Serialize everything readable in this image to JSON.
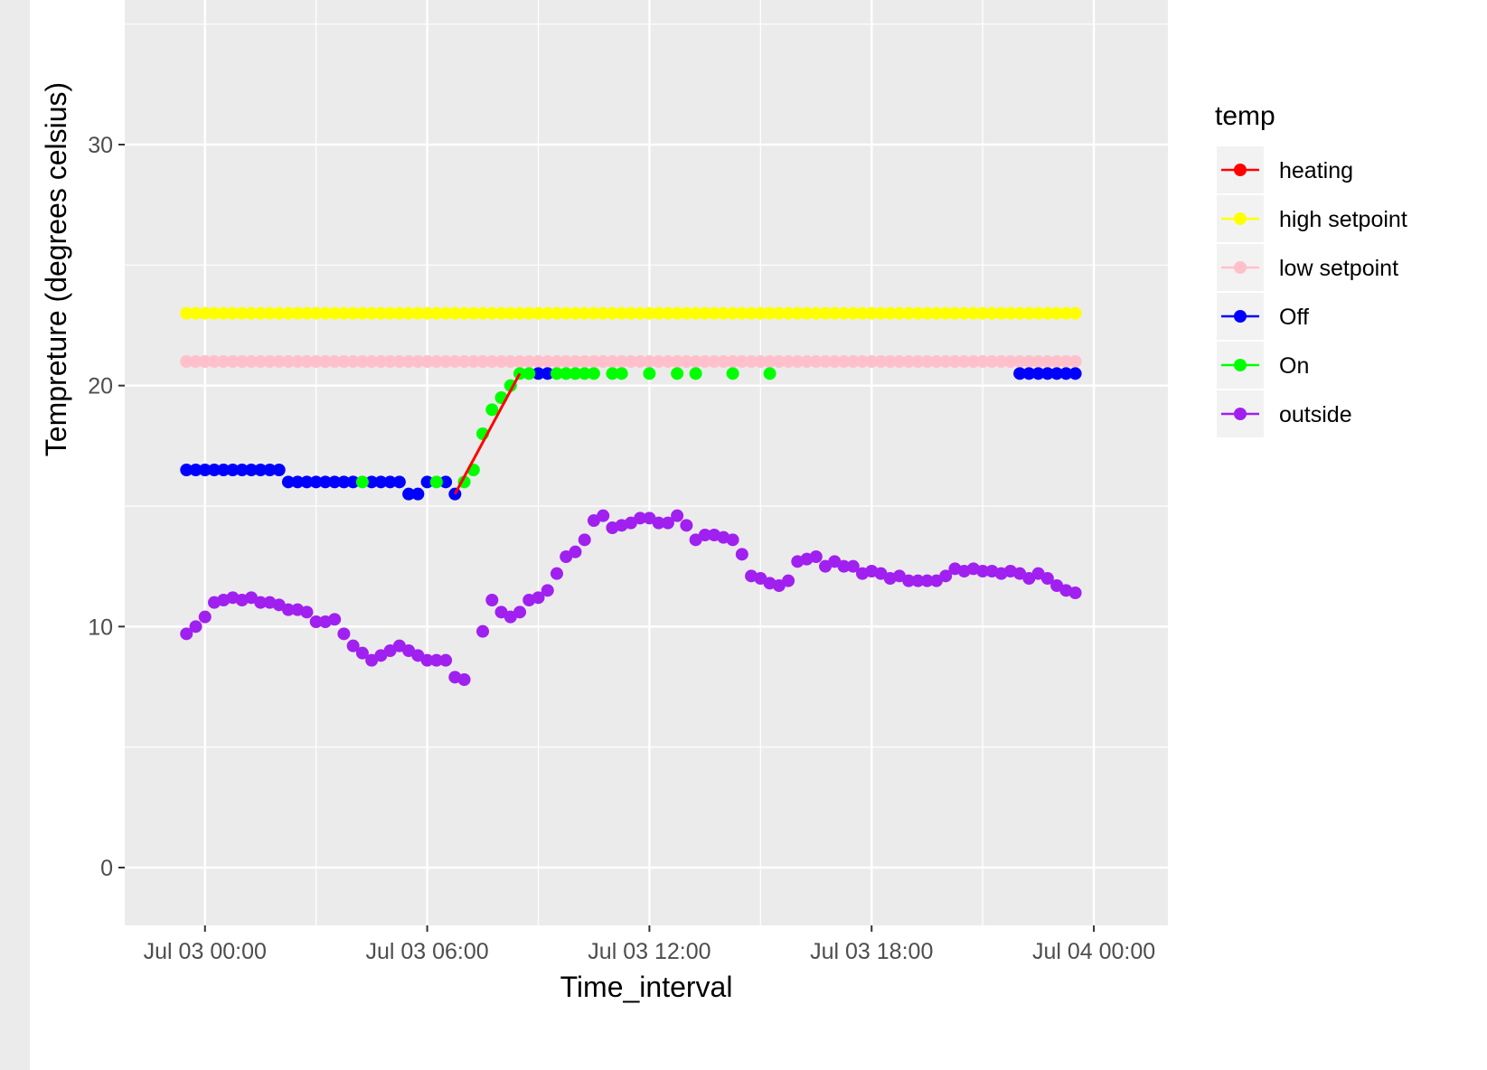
{
  "chart_data": {
    "type": "scatter",
    "xlabel": "Time_interval",
    "ylabel": "Tempreture (degrees celsius)",
    "xlim": [
      "2023-07-02 21:50",
      "2023-07-04 02:00"
    ],
    "ylim": [
      -2.4,
      36
    ],
    "x_ticks": [
      {
        "value": "2023-07-03 00:00",
        "label": "Jul 03 00:00"
      },
      {
        "value": "2023-07-03 06:00",
        "label": "Jul 03 06:00"
      },
      {
        "value": "2023-07-03 12:00",
        "label": "Jul 03 12:00"
      },
      {
        "value": "2023-07-03 18:00",
        "label": "Jul 03 18:00"
      },
      {
        "value": "2023-07-04 00:00",
        "label": "Jul 04 00:00"
      }
    ],
    "y_ticks": [
      0,
      10,
      20,
      30
    ],
    "grid": true,
    "legend": {
      "title": "temp",
      "position": "right"
    },
    "series": [
      {
        "name": "heating",
        "color": "#ff0000",
        "mode": "line",
        "x": [
          "2023-07-03 06:45",
          "2023-07-03 08:30"
        ],
        "y": [
          15.5,
          20.5
        ]
      },
      {
        "name": "high setpoint",
        "color": "#ffff00",
        "mode": "points",
        "x_start": "2023-07-02 23:30",
        "x_end": "2023-07-03 23:30",
        "x_step_minutes": 15,
        "y_constant": 23
      },
      {
        "name": "low setpoint",
        "color": "#ffc0cb",
        "mode": "points",
        "x_start": "2023-07-02 23:30",
        "x_end": "2023-07-03 23:30",
        "x_step_minutes": 15,
        "y_constant": 21
      },
      {
        "name": "Off",
        "color": "#0000ff",
        "mode": "points",
        "x": [
          "2023-07-02 23:30",
          "2023-07-02 23:45",
          "2023-07-03 00:00",
          "2023-07-03 00:15",
          "2023-07-03 00:30",
          "2023-07-03 00:45",
          "2023-07-03 01:00",
          "2023-07-03 01:15",
          "2023-07-03 01:30",
          "2023-07-03 01:45",
          "2023-07-03 02:00",
          "2023-07-03 02:15",
          "2023-07-03 02:30",
          "2023-07-03 02:45",
          "2023-07-03 03:00",
          "2023-07-03 03:15",
          "2023-07-03 03:30",
          "2023-07-03 03:45",
          "2023-07-03 04:00",
          "2023-07-03 04:30",
          "2023-07-03 04:45",
          "2023-07-03 05:00",
          "2023-07-03 05:15",
          "2023-07-03 05:30",
          "2023-07-03 05:45",
          "2023-07-03 06:00",
          "2023-07-03 06:30",
          "2023-07-03 06:45",
          "2023-07-03 09:00",
          "2023-07-03 09:15",
          "2023-07-03 22:00",
          "2023-07-03 22:15",
          "2023-07-03 22:30",
          "2023-07-03 22:45",
          "2023-07-03 23:00",
          "2023-07-03 23:15",
          "2023-07-03 23:30"
        ],
        "y": [
          16.5,
          16.5,
          16.5,
          16.5,
          16.5,
          16.5,
          16.5,
          16.5,
          16.5,
          16.5,
          16.5,
          16,
          16,
          16,
          16,
          16,
          16,
          16,
          16,
          16,
          16,
          16,
          16,
          15.5,
          15.5,
          16,
          16,
          15.5,
          20.5,
          20.5,
          20.5,
          20.5,
          20.5,
          20.5,
          20.5,
          20.5,
          20.5
        ]
      },
      {
        "name": "On",
        "color": "#00ff00",
        "mode": "points",
        "x": [
          "2023-07-03 04:15",
          "2023-07-03 06:15",
          "2023-07-03 07:00",
          "2023-07-03 07:15",
          "2023-07-03 07:30",
          "2023-07-03 07:45",
          "2023-07-03 08:00",
          "2023-07-03 08:15",
          "2023-07-03 08:30",
          "2023-07-03 08:45",
          "2023-07-03 09:30",
          "2023-07-03 09:45",
          "2023-07-03 10:00",
          "2023-07-03 10:15",
          "2023-07-03 10:30",
          "2023-07-03 11:00",
          "2023-07-03 11:15",
          "2023-07-03 12:00",
          "2023-07-03 12:45",
          "2023-07-03 13:15",
          "2023-07-03 14:15",
          "2023-07-03 15:15"
        ],
        "y": [
          16,
          16,
          16,
          16.5,
          18,
          19,
          19.5,
          20,
          20.5,
          20.5,
          20.5,
          20.5,
          20.5,
          20.5,
          20.5,
          20.5,
          20.5,
          20.5,
          20.5,
          20.5,
          20.5,
          20.5
        ]
      },
      {
        "name": "outside",
        "color": "#a020f0",
        "mode": "points",
        "x_start": "2023-07-02 23:30",
        "x_step_minutes": 15,
        "y": [
          9.7,
          10.0,
          10.4,
          11.0,
          11.1,
          11.2,
          11.1,
          11.2,
          11.0,
          11.0,
          10.9,
          10.7,
          10.7,
          10.6,
          10.2,
          10.2,
          10.3,
          9.7,
          9.2,
          8.9,
          8.6,
          8.8,
          9.0,
          9.2,
          9.0,
          8.8,
          8.6,
          8.6,
          8.6,
          7.9,
          7.8,
          null,
          9.8,
          11.1,
          10.6,
          10.4,
          10.6,
          11.1,
          11.2,
          11.5,
          12.2,
          12.9,
          13.1,
          13.6,
          14.4,
          14.6,
          14.1,
          14.2,
          14.3,
          14.5,
          14.5,
          14.3,
          14.3,
          14.6,
          14.2,
          13.6,
          13.8,
          13.8,
          13.7,
          13.6,
          13.0,
          12.1,
          12.0,
          11.8,
          11.7,
          11.9,
          12.7,
          12.8,
          12.9,
          12.5,
          12.7,
          12.5,
          12.5,
          12.2,
          12.3,
          12.2,
          12.0,
          12.1,
          11.9,
          11.9,
          11.9,
          11.9,
          12.1,
          12.4,
          12.3,
          12.4,
          12.3,
          12.3,
          12.2,
          12.3,
          12.2,
          12.0,
          12.2,
          12.0,
          11.7,
          11.5,
          11.4
        ]
      }
    ]
  }
}
